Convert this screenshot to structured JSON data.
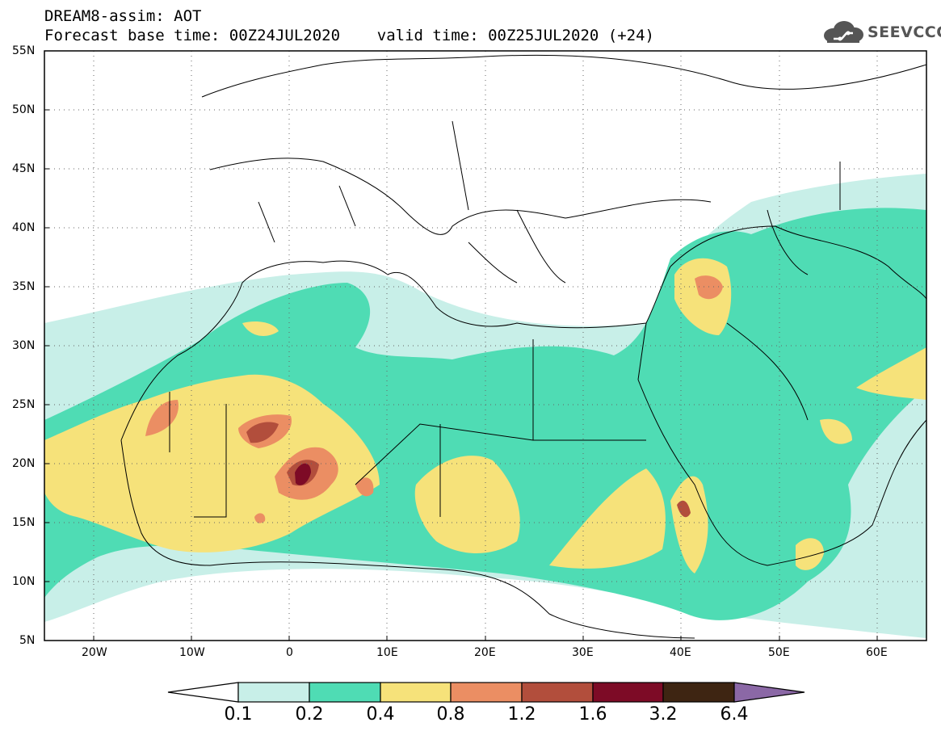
{
  "title": {
    "line1": "DREAM8-assim: AOT",
    "line2": "Forecast base time: 00Z24JUL2020    valid time: 00Z25JUL2020 (+24)"
  },
  "logo": {
    "text": "SEEVCCC",
    "icon": "cloud-icon"
  },
  "map": {
    "lon_range": [
      -25,
      65
    ],
    "lat_range": [
      5,
      55
    ],
    "lat_labels": [
      "55N",
      "50N",
      "45N",
      "40N",
      "35N",
      "30N",
      "25N",
      "20N",
      "15N",
      "10N",
      "5N"
    ],
    "lon_labels": [
      "20W",
      "10W",
      "0",
      "10E",
      "20E",
      "30E",
      "40E",
      "50E",
      "60E"
    ]
  },
  "colorbar": {
    "labels": [
      "0.1",
      "0.2",
      "0.4",
      "0.8",
      "1.2",
      "1.6",
      "3.2",
      "6.4"
    ],
    "colors": [
      "#ffffff",
      "#c8efe8",
      "#4fdcb4",
      "#f6e27a",
      "#eb8e63",
      "#b24e3c",
      "#7d0b26",
      "#3e2512",
      "#8b68a6"
    ]
  }
}
